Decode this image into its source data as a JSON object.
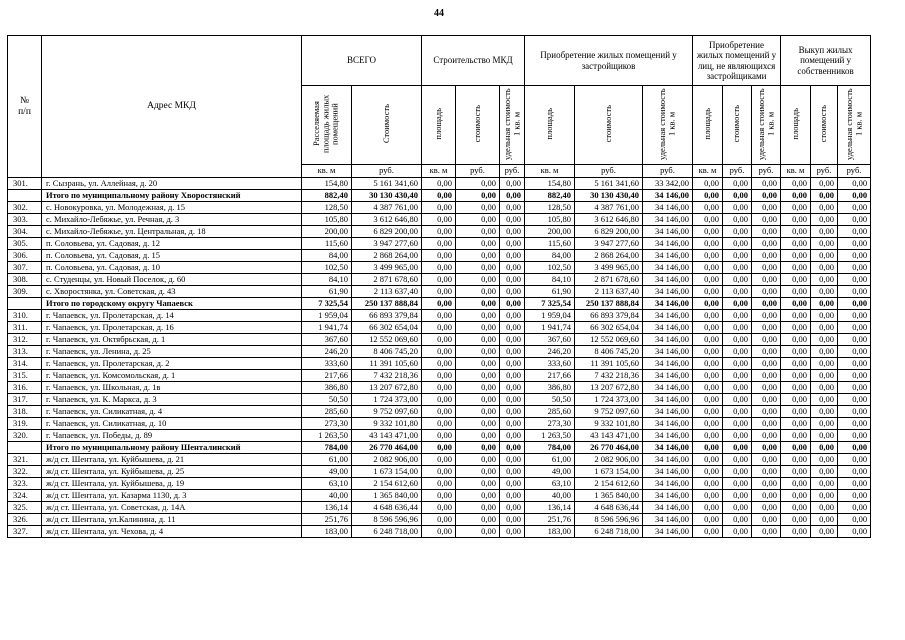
{
  "page_number": "44",
  "table": {
    "header": {
      "num_label": "№\nп/п",
      "address_label": "Адрес МКД",
      "groups": [
        {
          "label": "ВСЕГО"
        },
        {
          "label": "Строительство МКД"
        },
        {
          "label": "Приобретение жилых помещений у застройщиков"
        },
        {
          "label": "Приобретение жилых помещений у лиц, не являющихся застройщиками"
        },
        {
          "label": "Выкуп жилых помещений у собственников"
        }
      ],
      "sub": [
        "Расселяемая площадь жилых помещений",
        "Стоимость",
        "площадь",
        "стоимость",
        "удельная стоимость 1 кв. м",
        "площадь",
        "стоимость",
        "удельная стоимость 1 кв. м",
        "площадь",
        "стоимость",
        "удельная стоимость 1 кв. м",
        "площадь",
        "стоимость",
        "удельная стоимость 1 кв. м"
      ],
      "units": [
        "кв. м",
        "руб.",
        "кв. м",
        "руб.",
        "руб.",
        "кв. м",
        "руб.",
        "руб.",
        "кв. м",
        "руб.",
        "руб.",
        "кв. м",
        "руб.",
        "руб."
      ]
    },
    "rows": [
      {
        "num": "301.",
        "address": "г. Сызрань, ул. Аллейная, д. 20",
        "bold": false,
        "values": [
          "154,80",
          "5 161 341,60",
          "0,00",
          "0,00",
          "0,00",
          "154,80",
          "5 161 341,60",
          "33 342,00",
          "0,00",
          "0,00",
          "0,00",
          "0,00",
          "0,00",
          "0,00"
        ]
      },
      {
        "num": "",
        "address": "Итого по муниципальному району Хворостянский",
        "bold": true,
        "values": [
          "882,40",
          "30 130 430,40",
          "0,00",
          "0,00",
          "0,00",
          "882,40",
          "30 130 430,40",
          "34 146,00",
          "0,00",
          "0,00",
          "0,00",
          "0,00",
          "0,00",
          "0,00"
        ]
      },
      {
        "num": "302.",
        "address": "с. Новокуровка, ул. Молодежная, д. 15",
        "bold": false,
        "values": [
          "128,50",
          "4 387 761,00",
          "0,00",
          "0,00",
          "0,00",
          "128,50",
          "4 387 761,00",
          "34 146,00",
          "0,00",
          "0,00",
          "0,00",
          "0,00",
          "0,00",
          "0,00"
        ]
      },
      {
        "num": "303.",
        "address": "с. Михайло-Лебяжье, ул. Речная, д. 3",
        "bold": false,
        "values": [
          "105,80",
          "3 612 646,80",
          "0,00",
          "0,00",
          "0,00",
          "105,80",
          "3 612 646,80",
          "34 146,00",
          "0,00",
          "0,00",
          "0,00",
          "0,00",
          "0,00",
          "0,00"
        ]
      },
      {
        "num": "304.",
        "address": "с. Михайло-Лебяжье, ул. Центральная, д. 18",
        "bold": false,
        "values": [
          "200,00",
          "6 829 200,00",
          "0,00",
          "0,00",
          "0,00",
          "200,00",
          "6 829 200,00",
          "34 146,00",
          "0,00",
          "0,00",
          "0,00",
          "0,00",
          "0,00",
          "0,00"
        ]
      },
      {
        "num": "305.",
        "address": "п. Соловьева, ул. Садовая, д. 12",
        "bold": false,
        "values": [
          "115,60",
          "3 947 277,60",
          "0,00",
          "0,00",
          "0,00",
          "115,60",
          "3 947 277,60",
          "34 146,00",
          "0,00",
          "0,00",
          "0,00",
          "0,00",
          "0,00",
          "0,00"
        ]
      },
      {
        "num": "306.",
        "address": "п. Соловьева, ул. Садовая, д. 15",
        "bold": false,
        "values": [
          "84,00",
          "2 868 264,00",
          "0,00",
          "0,00",
          "0,00",
          "84,00",
          "2 868 264,00",
          "34 146,00",
          "0,00",
          "0,00",
          "0,00",
          "0,00",
          "0,00",
          "0,00"
        ]
      },
      {
        "num": "307.",
        "address": "п. Соловьева, ул. Садовая, д. 10",
        "bold": false,
        "values": [
          "102,50",
          "3 499 965,00",
          "0,00",
          "0,00",
          "0,00",
          "102,50",
          "3 499 965,00",
          "34 146,00",
          "0,00",
          "0,00",
          "0,00",
          "0,00",
          "0,00",
          "0,00"
        ]
      },
      {
        "num": "308.",
        "address": "с. Студенцы, ул. Новый Поселок, д. 60",
        "bold": false,
        "values": [
          "84,10",
          "2 871 678,60",
          "0,00",
          "0,00",
          "0,00",
          "84,10",
          "2 871 678,60",
          "34 146,00",
          "0,00",
          "0,00",
          "0,00",
          "0,00",
          "0,00",
          "0,00"
        ]
      },
      {
        "num": "309.",
        "address": "с. Хворостянка, ул. Советская, д. 43",
        "bold": false,
        "values": [
          "61,90",
          "2 113 637,40",
          "0,00",
          "0,00",
          "0,00",
          "61,90",
          "2 113 637,40",
          "34 146,00",
          "0,00",
          "0,00",
          "0,00",
          "0,00",
          "0,00",
          "0,00"
        ]
      },
      {
        "num": "",
        "address": "Итого по городскому округу Чапаевск",
        "bold": true,
        "values": [
          "7 325,54",
          "250 137 888,84",
          "0,00",
          "0,00",
          "0,00",
          "7 325,54",
          "250 137 888,84",
          "34 146,00",
          "0,00",
          "0,00",
          "0,00",
          "0,00",
          "0,00",
          "0,00"
        ]
      },
      {
        "num": "310.",
        "address": "г. Чапаевск, ул. Пролетарская, д. 14",
        "bold": false,
        "values": [
          "1 959,04",
          "66 893 379,84",
          "0,00",
          "0,00",
          "0,00",
          "1 959,04",
          "66 893 379,84",
          "34 146,00",
          "0,00",
          "0,00",
          "0,00",
          "0,00",
          "0,00",
          "0,00"
        ]
      },
      {
        "num": "311.",
        "address": "г. Чапаевск, ул. Пролетарская, д. 16",
        "bold": false,
        "values": [
          "1 941,74",
          "66 302 654,04",
          "0,00",
          "0,00",
          "0,00",
          "1 941,74",
          "66 302 654,04",
          "34 146,00",
          "0,00",
          "0,00",
          "0,00",
          "0,00",
          "0,00",
          "0,00"
        ]
      },
      {
        "num": "312.",
        "address": "г. Чапаевск, ул. Октябрьская, д. 1",
        "bold": false,
        "values": [
          "367,60",
          "12 552 069,60",
          "0,00",
          "0,00",
          "0,00",
          "367,60",
          "12 552 069,60",
          "34 146,00",
          "0,00",
          "0,00",
          "0,00",
          "0,00",
          "0,00",
          "0,00"
        ]
      },
      {
        "num": "313.",
        "address": "г. Чапаевск, ул. Ленина, д. 25",
        "bold": false,
        "values": [
          "246,20",
          "8 406 745,20",
          "0,00",
          "0,00",
          "0,00",
          "246,20",
          "8 406 745,20",
          "34 146,00",
          "0,00",
          "0,00",
          "0,00",
          "0,00",
          "0,00",
          "0,00"
        ]
      },
      {
        "num": "314.",
        "address": "г. Чапаевск, ул. Пролетарская, д. 2",
        "bold": false,
        "values": [
          "333,60",
          "11 391 105,60",
          "0,00",
          "0,00",
          "0,00",
          "333,60",
          "11 391 105,60",
          "34 146,00",
          "0,00",
          "0,00",
          "0,00",
          "0,00",
          "0,00",
          "0,00"
        ]
      },
      {
        "num": "315.",
        "address": "г. Чапаевск, ул. Комсомольская, д. 1",
        "bold": false,
        "values": [
          "217,66",
          "7 432 218,36",
          "0,00",
          "0,00",
          "0,00",
          "217,66",
          "7 432 218,36",
          "34 146,00",
          "0,00",
          "0,00",
          "0,00",
          "0,00",
          "0,00",
          "0,00"
        ]
      },
      {
        "num": "316.",
        "address": "г. Чапаевск, ул. Школьная, д. 1в",
        "bold": false,
        "values": [
          "386,80",
          "13 207 672,80",
          "0,00",
          "0,00",
          "0,00",
          "386,80",
          "13 207 672,80",
          "34 146,00",
          "0,00",
          "0,00",
          "0,00",
          "0,00",
          "0,00",
          "0,00"
        ]
      },
      {
        "num": "317.",
        "address": "г. Чапаевск, ул. К. Маркса, д. 3",
        "bold": false,
        "values": [
          "50,50",
          "1 724 373,00",
          "0,00",
          "0,00",
          "0,00",
          "50,50",
          "1 724 373,00",
          "34 146,00",
          "0,00",
          "0,00",
          "0,00",
          "0,00",
          "0,00",
          "0,00"
        ]
      },
      {
        "num": "318.",
        "address": "г. Чапаевск, ул. Силикатная, д. 4",
        "bold": false,
        "values": [
          "285,60",
          "9 752 097,60",
          "0,00",
          "0,00",
          "0,00",
          "285,60",
          "9 752 097,60",
          "34 146,00",
          "0,00",
          "0,00",
          "0,00",
          "0,00",
          "0,00",
          "0,00"
        ]
      },
      {
        "num": "319.",
        "address": "г. Чапаевск, ул. Силикатная, д. 10",
        "bold": false,
        "values": [
          "273,30",
          "9 332 101,80",
          "0,00",
          "0,00",
          "0,00",
          "273,30",
          "9 332 101,80",
          "34 146,00",
          "0,00",
          "0,00",
          "0,00",
          "0,00",
          "0,00",
          "0,00"
        ]
      },
      {
        "num": "320.",
        "address": "г. Чапаевск, ул. Победы, д. 89",
        "bold": false,
        "values": [
          "1 263,50",
          "43 143 471,00",
          "0,00",
          "0,00",
          "0,00",
          "1 263,50",
          "43 143 471,00",
          "34 146,00",
          "0,00",
          "0,00",
          "0,00",
          "0,00",
          "0,00",
          "0,00"
        ]
      },
      {
        "num": "",
        "address": "Итого по муниципальному району Шенталинский",
        "bold": true,
        "values": [
          "784,00",
          "26 770 464,00",
          "0,00",
          "0,00",
          "0,00",
          "784,00",
          "26 770 464,00",
          "34 146,00",
          "0,00",
          "0,00",
          "0,00",
          "0,00",
          "0,00",
          "0,00"
        ]
      },
      {
        "num": "321.",
        "address": "ж/д ст. Шентала, ул. Куйбышева, д. 21",
        "bold": false,
        "values": [
          "61,00",
          "2 082 906,00",
          "0,00",
          "0,00",
          "0,00",
          "61,00",
          "2 082 906,00",
          "34 146,00",
          "0,00",
          "0,00",
          "0,00",
          "0,00",
          "0,00",
          "0,00"
        ]
      },
      {
        "num": "322.",
        "address": "ж/д ст. Шентала, ул. Куйбышева, д. 25",
        "bold": false,
        "values": [
          "49,00",
          "1 673 154,00",
          "0,00",
          "0,00",
          "0,00",
          "49,00",
          "1 673 154,00",
          "34 146,00",
          "0,00",
          "0,00",
          "0,00",
          "0,00",
          "0,00",
          "0,00"
        ]
      },
      {
        "num": "323.",
        "address": "ж/д ст. Шентала, ул. Куйбышева, д. 19",
        "bold": false,
        "values": [
          "63,10",
          "2 154 612,60",
          "0,00",
          "0,00",
          "0,00",
          "63,10",
          "2 154 612,60",
          "34 146,00",
          "0,00",
          "0,00",
          "0,00",
          "0,00",
          "0,00",
          "0,00"
        ]
      },
      {
        "num": "324.",
        "address": "ж/д ст. Шентала, ул. Казарма 1130, д. 3",
        "bold": false,
        "values": [
          "40,00",
          "1 365 840,00",
          "0,00",
          "0,00",
          "0,00",
          "40,00",
          "1 365 840,00",
          "34 146,00",
          "0,00",
          "0,00",
          "0,00",
          "0,00",
          "0,00",
          "0,00"
        ]
      },
      {
        "num": "325.",
        "address": "ж/д ст. Шентала, ул. Советская, д. 14А",
        "bold": false,
        "values": [
          "136,14",
          "4 648 636,44",
          "0,00",
          "0,00",
          "0,00",
          "136,14",
          "4 648 636,44",
          "34 146,00",
          "0,00",
          "0,00",
          "0,00",
          "0,00",
          "0,00",
          "0,00"
        ]
      },
      {
        "num": "326.",
        "address": "ж/д ст. Шентала, ул.Калинина, д. 11",
        "bold": false,
        "values": [
          "251,76",
          "8 596 596,96",
          "0,00",
          "0,00",
          "0,00",
          "251,76",
          "8 596 596,96",
          "34 146,00",
          "0,00",
          "0,00",
          "0,00",
          "0,00",
          "0,00",
          "0,00"
        ]
      },
      {
        "num": "327.",
        "address": "ж/д ст. Шентала, ул. Чехова, д. 4",
        "bold": false,
        "values": [
          "183,00",
          "6 248 718,00",
          "0,00",
          "0,00",
          "0,00",
          "183,00",
          "6 248 718,00",
          "34 146,00",
          "0,00",
          "0,00",
          "0,00",
          "0,00",
          "0,00",
          "0,00"
        ]
      }
    ]
  }
}
